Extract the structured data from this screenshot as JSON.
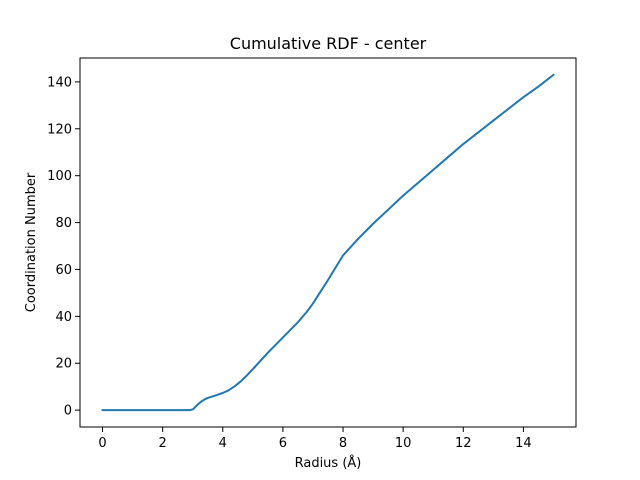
{
  "chart_data": {
    "type": "line",
    "title": "Cumulative RDF - center",
    "xlabel": "Radius (Å)",
    "ylabel": "Coordination Number",
    "xlim": [
      -0.75,
      15.75
    ],
    "ylim": [
      -7.2,
      150.2
    ],
    "xticks": [
      0,
      2,
      4,
      6,
      8,
      10,
      12,
      14
    ],
    "yticks": [
      0,
      20,
      40,
      60,
      80,
      100,
      120,
      140
    ],
    "grid": false,
    "line_color": "#1f77b4",
    "series": [
      {
        "x": [
          0,
          0.5,
          1,
          1.5,
          2,
          2.5,
          2.9,
          3.0,
          3.1,
          3.2,
          3.3,
          3.4,
          3.5,
          3.7,
          4.0,
          4.2,
          4.4,
          4.6,
          4.8,
          5.0,
          5.5,
          6.0,
          6.5,
          6.8,
          7.0,
          7.5,
          8.0,
          8.5,
          9.0,
          9.5,
          10.0,
          10.5,
          11.0,
          11.5,
          12.0,
          12.5,
          13.0,
          13.5,
          14.0,
          14.5,
          15.0
        ],
        "y": [
          0,
          0,
          0,
          0,
          0,
          0,
          0,
          0.3,
          1.5,
          2.8,
          3.8,
          4.6,
          5.2,
          6.0,
          7.3,
          8.5,
          10.2,
          12.3,
          14.8,
          17.5,
          24.5,
          31.0,
          37.5,
          42.0,
          45.5,
          55.5,
          66.0,
          73.0,
          79.5,
          85.5,
          91.5,
          97.0,
          102.5,
          108.0,
          113.5,
          118.5,
          123.5,
          128.5,
          133.5,
          138.0,
          143.0
        ]
      }
    ]
  }
}
